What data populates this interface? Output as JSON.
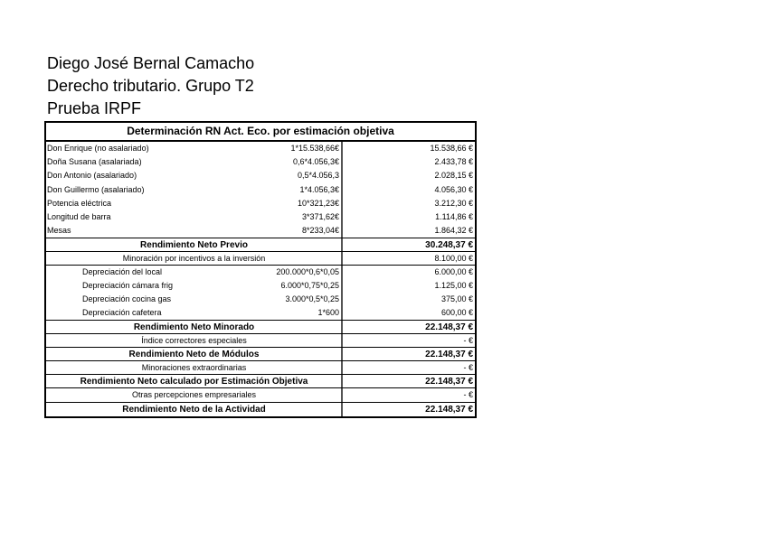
{
  "header": {
    "author": "Diego José Bernal Camacho",
    "course": "Derecho tributario. Grupo T2",
    "test": "Prueba IRPF"
  },
  "table": {
    "title": "Determinación RN Act. Eco. por estimación objetiva",
    "rows": [
      {
        "label": "Don Enrique (no asalariado)",
        "formula": "1*15.538,66€",
        "value": "15.538,66 €"
      },
      {
        "label": "Doña Susana (asalariada)",
        "formula": "0,6*4.056,3€",
        "value": "2.433,78 €"
      },
      {
        "label": "Don Antonio (asalariado)",
        "formula": "0,5*4.056,3",
        "value": "2.028,15 €"
      },
      {
        "label": "Don Guillermo (asalariado)",
        "formula": "1*4.056,3€",
        "value": "4.056,30 €"
      },
      {
        "label": "Potencia eléctrica",
        "formula": "10*321,23€",
        "value": "3.212,30 €"
      },
      {
        "label": "Longitud de barra",
        "formula": "3*371,62€",
        "value": "1.114,86 €"
      },
      {
        "label": "Mesas",
        "formula": "8*233,04€",
        "value": "1.864,32 €"
      },
      {
        "label": "Rendimiento Neto Previo",
        "value": "30.248,37 €"
      },
      {
        "label": "Minoración por incentivos a la inversión",
        "value": "8.100,00 €"
      },
      {
        "label": "Depreciación del local",
        "formula": "200.000*0,6*0,05",
        "value": "6.000,00 €"
      },
      {
        "label": "Depreciación cámara frig",
        "formula": "6.000*0,75*0,25",
        "value": "1.125,00 €"
      },
      {
        "label": "Depreciación cocina gas",
        "formula": "3.000*0,5*0,25",
        "value": "375,00 €"
      },
      {
        "label": "Depreciación cafetera",
        "formula": "1*600",
        "value": "600,00 €"
      },
      {
        "label": "Rendimiento Neto Minorado",
        "value": "22.148,37 €"
      },
      {
        "label": "Índice correctores especiales",
        "value": "-  €"
      },
      {
        "label": "Rendimiento Neto de Módulos",
        "value": "22.148,37 €"
      },
      {
        "label": "Minoraciones extraordinarias",
        "value": "-  €"
      },
      {
        "label": "Rendimiento Neto calculado por Estimación Objetiva",
        "value": "22.148,37 €"
      },
      {
        "label": "Otras percepciones empresariales",
        "value": "-  €"
      },
      {
        "label": "Rendimiento Neto de la Actividad",
        "value": "22.148,37 €"
      }
    ]
  }
}
